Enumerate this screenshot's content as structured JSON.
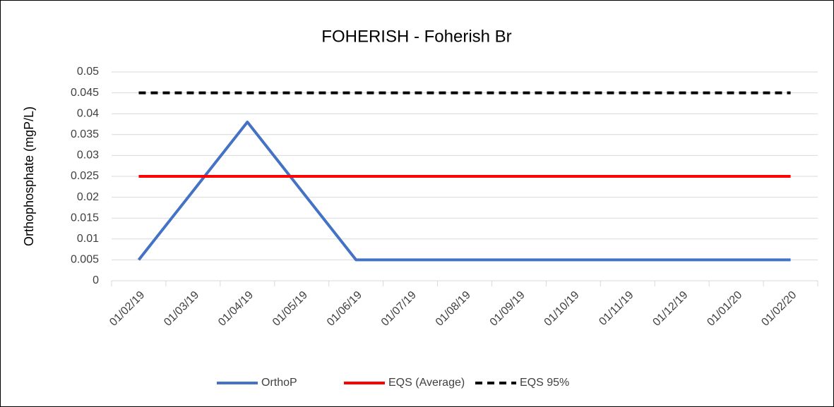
{
  "chart_data": {
    "type": "line",
    "title": "FOHERISH - Foherish Br",
    "y_label": "Orthophosphate (mgP/L)",
    "categories": [
      "01/02/19",
      "01/03/19",
      "01/04/19",
      "01/05/19",
      "01/06/19",
      "01/07/19",
      "01/08/19",
      "01/09/19",
      "01/10/19",
      "01/11/19",
      "01/12/19",
      "01/01/20",
      "01/02/20"
    ],
    "series": [
      {
        "name": "OrthoP",
        "color": "#4472c4",
        "dashed": false,
        "values": [
          0.005,
          0.0215,
          0.038,
          0.0215,
          0.005,
          0.005,
          0.005,
          0.005,
          0.005,
          0.005,
          0.005,
          0.005,
          0.005
        ]
      },
      {
        "name": "EQS (Average)",
        "color": "#ff0000",
        "dashed": false,
        "values": [
          0.025,
          0.025,
          0.025,
          0.025,
          0.025,
          0.025,
          0.025,
          0.025,
          0.025,
          0.025,
          0.025,
          0.025,
          0.025
        ]
      },
      {
        "name": "EQS 95%",
        "color": "#000000",
        "dashed": true,
        "values": [
          0.045,
          0.045,
          0.045,
          0.045,
          0.045,
          0.045,
          0.045,
          0.045,
          0.045,
          0.045,
          0.045,
          0.045,
          0.045
        ]
      }
    ],
    "ylim": [
      0,
      0.05
    ],
    "yticks": [
      0,
      0.005,
      0.01,
      0.015,
      0.02,
      0.025,
      0.03,
      0.035,
      0.04,
      0.045,
      0.05
    ],
    "grid": true,
    "legend": "bottom"
  }
}
